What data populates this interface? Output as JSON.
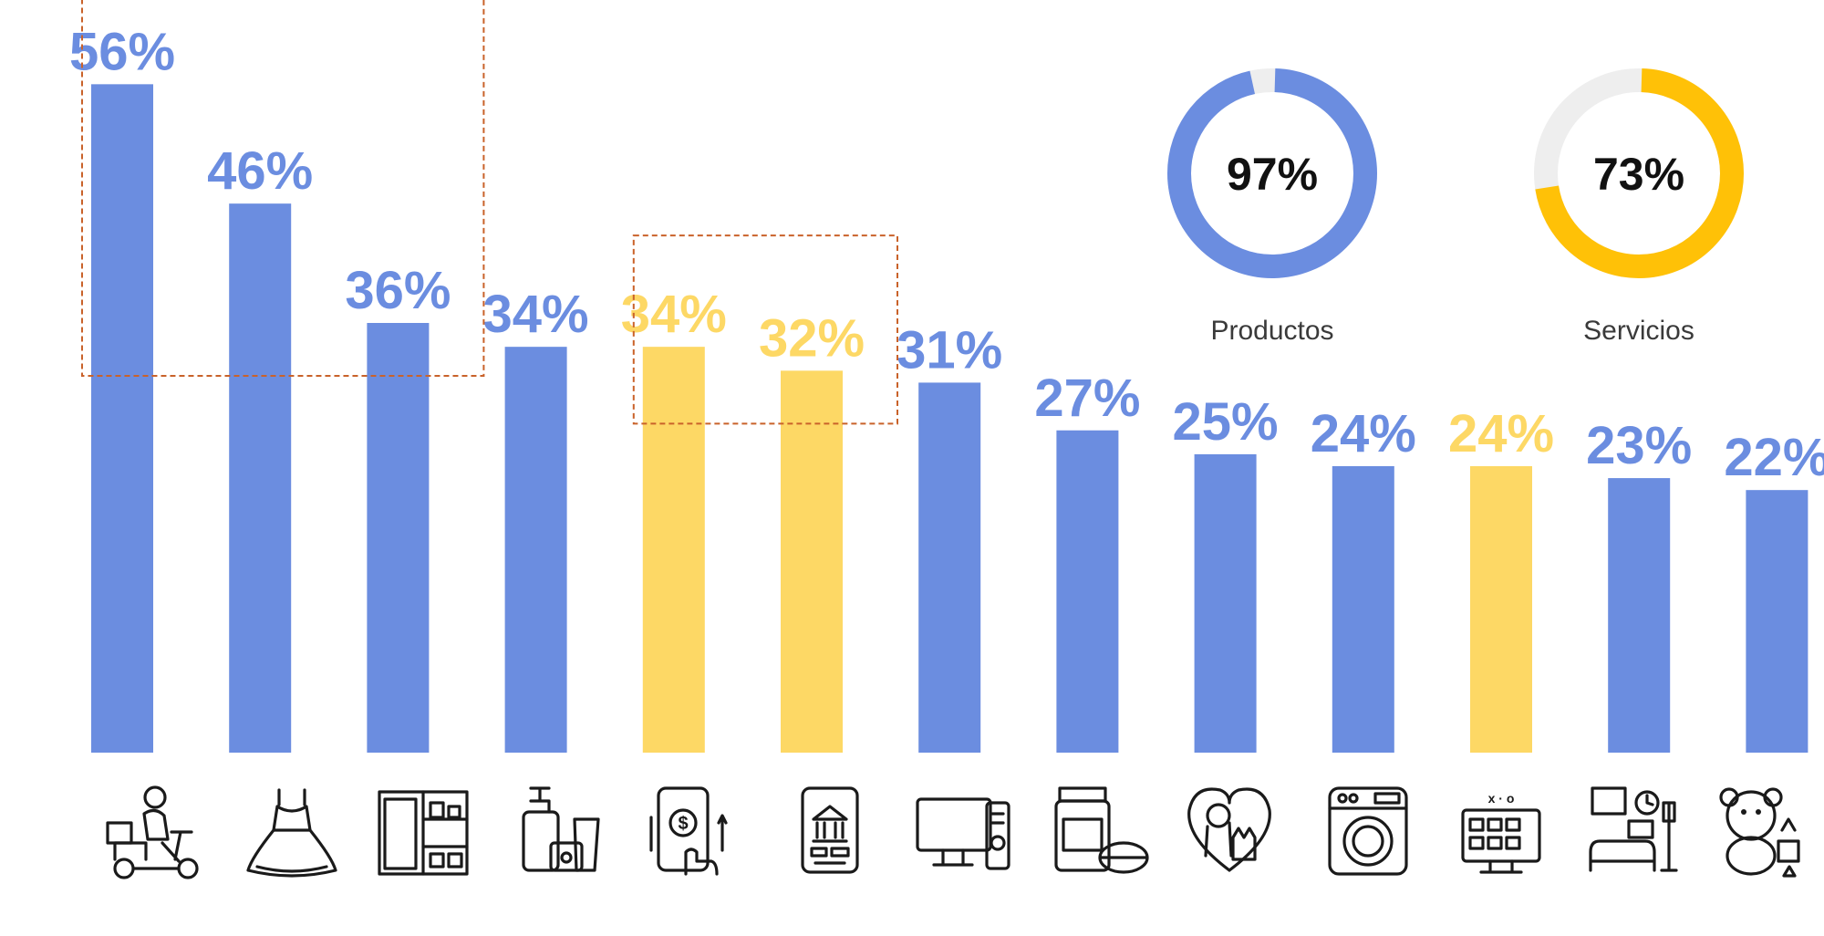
{
  "chart_data": [
    {
      "type": "bar",
      "categories": [
        "delivery-scooter",
        "dress",
        "furniture-cabinet",
        "cosmetics",
        "mobile-payment",
        "mobile-banking",
        "tv-electronics",
        "supplements",
        "pets",
        "washing-machine",
        "streaming-service",
        "home-decor",
        "toys"
      ],
      "values": [
        56,
        46,
        36,
        34,
        34,
        32,
        31,
        27,
        25,
        24,
        24,
        23,
        22
      ],
      "value_labels": [
        "56%",
        "46%",
        "36%",
        "34%",
        "34%",
        "32%",
        "31%",
        "27%",
        "25%",
        "24%",
        "24%",
        "23%",
        "22%"
      ],
      "kind": [
        "product",
        "product",
        "product",
        "product",
        "service",
        "service",
        "product",
        "product",
        "product",
        "product",
        "service",
        "product",
        "product"
      ],
      "ylim": [
        0,
        60
      ],
      "grid": false,
      "colors": {
        "product": "#6b8de0",
        "service": "#fdd865",
        "highlight_box": "#c9622a"
      },
      "highlight_groups": [
        [
          0,
          2
        ],
        [
          4,
          5
        ]
      ]
    },
    {
      "type": "pie",
      "variant": "donut",
      "name": "Productos",
      "value": 97,
      "label": "97%",
      "color": "#6b8de0",
      "remainder_color": "#eeeeee"
    },
    {
      "type": "pie",
      "variant": "donut",
      "name": "Servicios",
      "value": 73,
      "label": "73%",
      "color": "#ffc107",
      "remainder_color": "#eeeeee"
    }
  ]
}
